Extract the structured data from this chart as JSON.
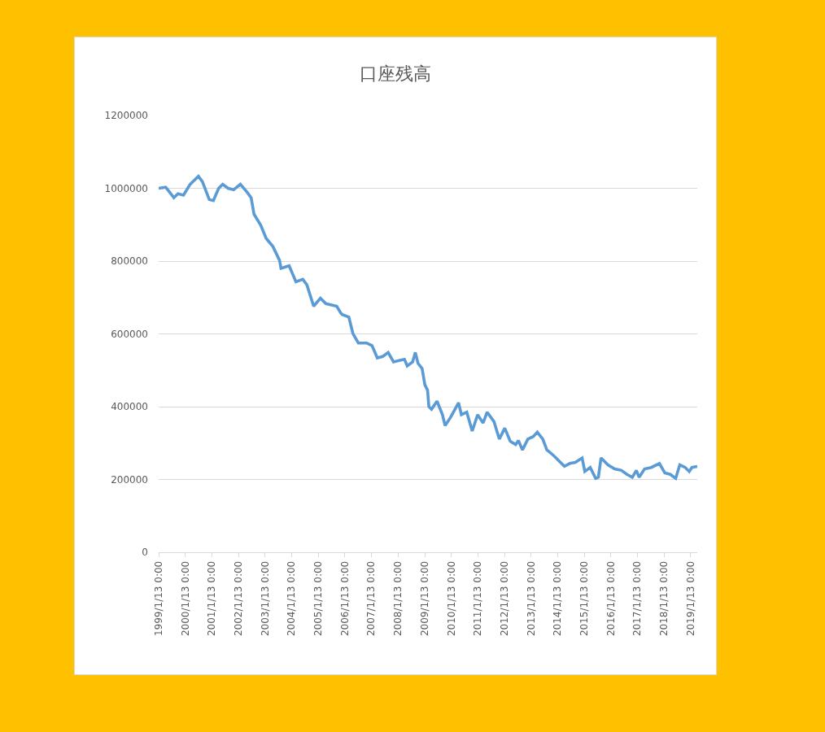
{
  "chart_data": {
    "type": "line",
    "title": "口座残高",
    "x": [
      "1999-01-13",
      "1999-04-20",
      "1999-08-10",
      "1999-10-05",
      "1999-12-20",
      "2000-03-20",
      "2000-07-12",
      "2000-09-05",
      "2000-12-08",
      "2001-02-02",
      "2001-04-16",
      "2001-06-10",
      "2001-08-24",
      "2001-11-07",
      "2002-02-08",
      "2002-05-12",
      "2002-07-06",
      "2002-08-14",
      "2002-11-14",
      "2003-01-29",
      "2003-05-01",
      "2003-07-31",
      "2003-08-20",
      "2003-12-09",
      "2004-03-12",
      "2004-06-14",
      "2004-08-09",
      "2004-11-10",
      "2005-02-11",
      "2005-04-27",
      "2005-09-23",
      "2005-11-18",
      "2005-12-06",
      "2006-03-08",
      "2006-05-03",
      "2006-07-17",
      "2006-11-06",
      "2007-01-20",
      "2007-04-03",
      "2007-06-17",
      "2007-08-30",
      "2007-11-12",
      "2008-01-26",
      "2008-04-10",
      "2008-05-18",
      "2008-07-31",
      "2008-09-06",
      "2008-10-13",
      "2008-12-08",
      "2009-01-15",
      "2009-02-21",
      "2009-03-11",
      "2009-04-17",
      "2009-07-01",
      "2009-09-13",
      "2009-10-20",
      "2010-01-01",
      "2010-04-23",
      "2010-05-31",
      "2010-08-13",
      "2010-10-27",
      "2011-01-10",
      "2011-03-25",
      "2011-05-20",
      "2011-08-22",
      "2011-11-03",
      "2012-01-17",
      "2012-04-01",
      "2012-06-14",
      "2012-07-23",
      "2012-09-16",
      "2012-11-29",
      "2013-02-12",
      "2013-04-08",
      "2013-06-22",
      "2013-08-17",
      "2013-11-17",
      "2014-01-31",
      "2014-04-15",
      "2014-06-29",
      "2014-09-12",
      "2014-12-14",
      "2015-01-20",
      "2015-04-04",
      "2015-06-18",
      "2015-07-25",
      "2015-08-31",
      "2015-12-03",
      "2016-03-05",
      "2016-06-06",
      "2016-08-20",
      "2016-11-02",
      "2016-12-28",
      "2017-02-04",
      "2017-04-20",
      "2017-07-21",
      "2017-11-09",
      "2018-01-23",
      "2018-04-07",
      "2018-06-21",
      "2018-08-16",
      "2018-10-29",
      "2018-12-24",
      "2019-01-30",
      "2019-04-13"
    ],
    "series": [
      {
        "color": "#5b9bd5",
        "values": [
          1000000,
          1003000,
          974000,
          985000,
          981000,
          1011000,
          1033000,
          1018000,
          969000,
          966000,
          1000000,
          1011000,
          1000000,
          996000,
          1011000,
          989000,
          974000,
          929000,
          899000,
          862000,
          840000,
          802000,
          780000,
          787000,
          743000,
          750000,
          735000,
          676000,
          698000,
          683000,
          676000,
          657000,
          653000,
          646000,
          601000,
          575000,
          575000,
          568000,
          534000,
          538000,
          549000,
          523000,
          527000,
          530000,
          512000,
          523000,
          549000,
          519000,
          505000,
          460000,
          445000,
          400000,
          393000,
          415000,
          378000,
          348000,
          370000,
          411000,
          378000,
          385000,
          333000,
          378000,
          355000,
          385000,
          359000,
          311000,
          341000,
          305000,
          296000,
          307000,
          281000,
          311000,
          318000,
          330000,
          311000,
          281000,
          266000,
          251000,
          236000,
          244000,
          247000,
          259000,
          222000,
          233000,
          203000,
          206000,
          259000,
          240000,
          229000,
          225000,
          214000,
          206000,
          225000,
          206000,
          229000,
          233000,
          244000,
          218000,
          214000,
          203000,
          240000,
          233000,
          222000,
          233000,
          236000
        ]
      }
    ],
    "xlim": [
      "1999-01-13",
      "2019-04-13"
    ],
    "xticks": [
      {
        "value": "1999-01-13",
        "label": "1999/1/13 0:00"
      },
      {
        "value": "2000-01-13",
        "label": "2000/1/13 0:00"
      },
      {
        "value": "2001-01-13",
        "label": "2001/1/13 0:00"
      },
      {
        "value": "2002-01-13",
        "label": "2002/1/13 0:00"
      },
      {
        "value": "2003-01-13",
        "label": "2003/1/13 0:00"
      },
      {
        "value": "2004-01-13",
        "label": "2004/1/13 0:00"
      },
      {
        "value": "2005-01-13",
        "label": "2005/1/13 0:00"
      },
      {
        "value": "2006-01-13",
        "label": "2006/1/13 0:00"
      },
      {
        "value": "2007-01-13",
        "label": "2007/1/13 0:00"
      },
      {
        "value": "2008-01-13",
        "label": "2008/1/13 0:00"
      },
      {
        "value": "2009-01-13",
        "label": "2009/1/13 0:00"
      },
      {
        "value": "2010-01-13",
        "label": "2010/1/13 0:00"
      },
      {
        "value": "2011-01-13",
        "label": "2011/1/13 0:00"
      },
      {
        "value": "2012-01-13",
        "label": "2012/1/13 0:00"
      },
      {
        "value": "2013-01-13",
        "label": "2013/1/13 0:00"
      },
      {
        "value": "2014-01-13",
        "label": "2014/1/13 0:00"
      },
      {
        "value": "2015-01-13",
        "label": "2015/1/13 0:00"
      },
      {
        "value": "2016-01-13",
        "label": "2016/1/13 0:00"
      },
      {
        "value": "2017-01-13",
        "label": "2017/1/13 0:00"
      },
      {
        "value": "2018-01-13",
        "label": "2018/1/13 0:00"
      },
      {
        "value": "2019-01-13",
        "label": "2019/1/13 0:00"
      }
    ],
    "ylim": [
      0,
      1200000
    ],
    "yticks": [
      0,
      200000,
      400000,
      600000,
      800000,
      1000000,
      1200000
    ],
    "grid": "y",
    "line_style": "solid"
  }
}
